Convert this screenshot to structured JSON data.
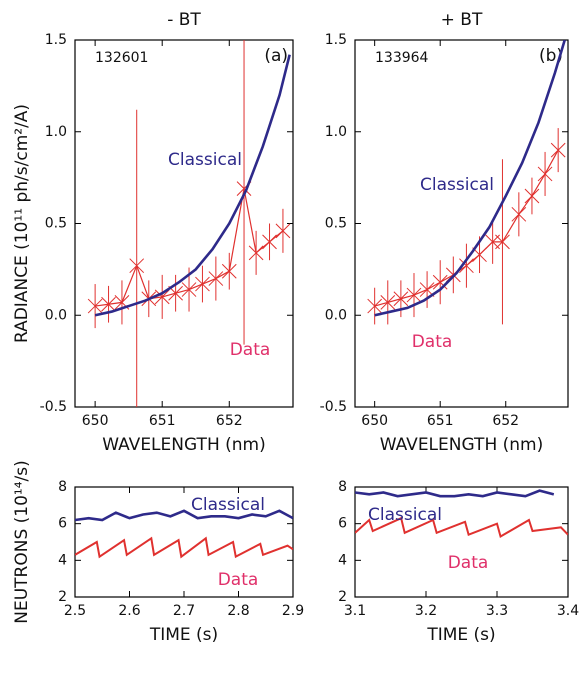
{
  "chart_data": [
    {
      "type": "line",
      "title": "- BT",
      "shot": "132601",
      "panel_label": "(a)",
      "xlabel": "WAVELENGTH (nm)",
      "ylabel": "RADIANCE (10¹¹ ph/s/cm²/A)",
      "xlim": [
        649.7,
        652.95
      ],
      "xticks": [
        650,
        651,
        652
      ],
      "ylim": [
        -0.5,
        1.5
      ],
      "yticks": [
        {
          "value": -0.5,
          "label": "-0.5"
        },
        {
          "value": 0,
          "label": "0.0"
        },
        {
          "value": 0.5,
          "label": "0.5"
        },
        {
          "value": 1,
          "label": "1.0"
        },
        {
          "value": 1.5,
          "label": "1.5"
        }
      ],
      "series": [
        {
          "name": "Classical",
          "color": "#2e2a8a",
          "x": [
            650.0,
            650.25,
            650.5,
            650.75,
            651.0,
            651.25,
            651.5,
            651.75,
            652.0,
            652.25,
            652.5,
            652.75,
            652.9
          ],
          "values": [
            0.0,
            0.02,
            0.05,
            0.08,
            0.12,
            0.18,
            0.25,
            0.36,
            0.5,
            0.68,
            0.92,
            1.2,
            1.42
          ]
        },
        {
          "name": "Data",
          "color": "#e0312f",
          "x": [
            650.0,
            650.2,
            650.4,
            650.62,
            650.8,
            651.0,
            651.2,
            651.4,
            651.6,
            651.8,
            652.0,
            652.22,
            652.4,
            652.6,
            652.8
          ],
          "values": [
            0.05,
            0.06,
            0.07,
            0.27,
            0.09,
            0.1,
            0.12,
            0.14,
            0.17,
            0.2,
            0.24,
            0.69,
            0.34,
            0.4,
            0.46
          ],
          "errors": [
            0.12,
            0.1,
            0.12,
            0.85,
            0.1,
            0.12,
            0.1,
            0.12,
            0.1,
            0.12,
            0.1,
            0.85,
            0.12,
            0.1,
            0.12
          ]
        }
      ]
    },
    {
      "type": "line",
      "title": "+ BT",
      "shot": "133964",
      "panel_label": "(b)",
      "xlabel": "WAVELENGTH (nm)",
      "xlim": [
        649.7,
        652.95
      ],
      "xticks": [
        650,
        651,
        652
      ],
      "ylim": [
        -0.5,
        1.5
      ],
      "yticks": [
        {
          "value": -0.5,
          "label": "-0.5"
        },
        {
          "value": 0,
          "label": "0.0"
        },
        {
          "value": 0.5,
          "label": "0.5"
        },
        {
          "value": 1,
          "label": "1.0"
        },
        {
          "value": 1.5,
          "label": "1.5"
        }
      ],
      "series": [
        {
          "name": "Classical",
          "color": "#2e2a8a",
          "x": [
            650.0,
            650.25,
            650.5,
            650.75,
            651.0,
            651.25,
            651.5,
            651.75,
            652.0,
            652.25,
            652.5,
            652.75,
            652.9
          ],
          "values": [
            0.0,
            0.02,
            0.04,
            0.08,
            0.14,
            0.23,
            0.35,
            0.48,
            0.65,
            0.83,
            1.05,
            1.32,
            1.5
          ]
        },
        {
          "name": "Data",
          "color": "#e0312f",
          "x": [
            650.0,
            650.2,
            650.4,
            650.6,
            650.8,
            651.0,
            651.2,
            651.4,
            651.6,
            651.8,
            651.95,
            652.2,
            652.4,
            652.6,
            652.8
          ],
          "values": [
            0.05,
            0.07,
            0.09,
            0.11,
            0.14,
            0.18,
            0.22,
            0.27,
            0.33,
            0.4,
            0.4,
            0.55,
            0.65,
            0.77,
            0.9
          ],
          "errors": [
            0.1,
            0.12,
            0.1,
            0.12,
            0.1,
            0.12,
            0.1,
            0.12,
            0.1,
            0.12,
            0.45,
            0.12,
            0.1,
            0.12,
            0.12
          ]
        }
      ]
    },
    {
      "type": "line",
      "xlabel": "TIME (s)",
      "ylabel": "NEUTRONS (10¹⁴/s)",
      "xlim": [
        2.5,
        2.9
      ],
      "xticks": [
        2.5,
        2.6,
        2.7,
        2.8,
        2.9
      ],
      "ylim": [
        2,
        8
      ],
      "yticks": [
        2,
        4,
        6,
        8
      ],
      "series": [
        {
          "name": "Classical",
          "color": "#2e2a8a",
          "x": [
            2.5,
            2.525,
            2.55,
            2.575,
            2.6,
            2.625,
            2.65,
            2.675,
            2.7,
            2.725,
            2.75,
            2.775,
            2.8,
            2.825,
            2.85,
            2.875,
            2.9
          ],
          "values": [
            6.2,
            6.3,
            6.2,
            6.6,
            6.3,
            6.5,
            6.6,
            6.4,
            6.7,
            6.3,
            6.4,
            6.4,
            6.3,
            6.5,
            6.4,
            6.7,
            6.3
          ]
        },
        {
          "name": "Data",
          "color": "#e0312f",
          "x": [
            2.5,
            2.54,
            2.545,
            2.59,
            2.595,
            2.64,
            2.645,
            2.69,
            2.695,
            2.74,
            2.745,
            2.79,
            2.795,
            2.84,
            2.845,
            2.89,
            2.9
          ],
          "values": [
            4.3,
            5.0,
            4.2,
            5.1,
            4.3,
            5.2,
            4.3,
            5.1,
            4.2,
            5.2,
            4.3,
            5.0,
            4.2,
            4.9,
            4.3,
            4.8,
            4.6
          ]
        }
      ]
    },
    {
      "type": "line",
      "xlabel": "TIME (s)",
      "xlim": [
        3.1,
        3.4
      ],
      "xticks": [
        3.1,
        3.2,
        3.3,
        3.4
      ],
      "ylim": [
        2,
        8
      ],
      "yticks": [
        2,
        4,
        6,
        8
      ],
      "series": [
        {
          "name": "Classical",
          "color": "#2e2a8a",
          "x": [
            3.1,
            3.12,
            3.14,
            3.16,
            3.18,
            3.2,
            3.22,
            3.24,
            3.26,
            3.28,
            3.3,
            3.32,
            3.34,
            3.36,
            3.38
          ],
          "values": [
            7.7,
            7.6,
            7.7,
            7.5,
            7.6,
            7.7,
            7.5,
            7.5,
            7.6,
            7.5,
            7.7,
            7.6,
            7.5,
            7.8,
            7.6
          ]
        },
        {
          "name": "Data",
          "color": "#e0312f",
          "x": [
            3.1,
            3.12,
            3.125,
            3.165,
            3.17,
            3.21,
            3.215,
            3.255,
            3.26,
            3.3,
            3.305,
            3.345,
            3.35,
            3.39,
            3.4
          ],
          "values": [
            5.5,
            6.2,
            5.6,
            6.3,
            5.5,
            6.2,
            5.5,
            6.1,
            5.4,
            6.0,
            5.3,
            6.2,
            5.6,
            5.8,
            5.4
          ]
        }
      ]
    }
  ]
}
